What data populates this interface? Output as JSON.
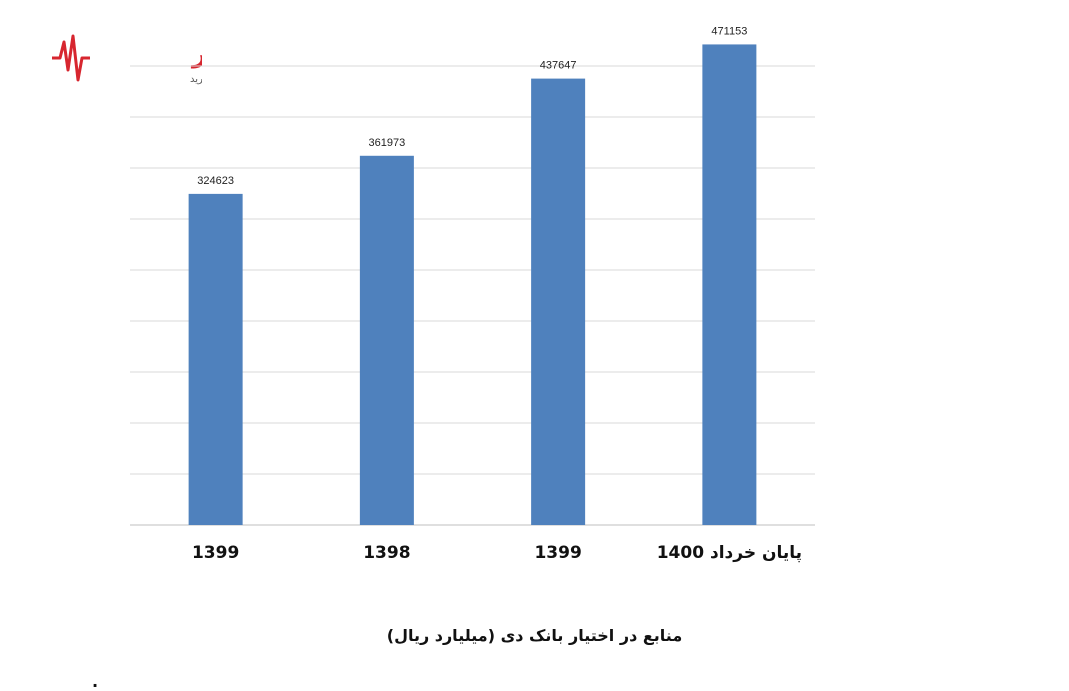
{
  "logo": {
    "name": "نبض بازار",
    "tagline": "نبض بازار را به دست بگیرید",
    "color": "#d7262f"
  },
  "chart_data": {
    "type": "bar",
    "title": "منابع در اختیار بانک دی (میلیارد ریال)",
    "categories": [
      "1399",
      "1398",
      "1399",
      "پایان خرداد 1400"
    ],
    "values": [
      324623,
      361973,
      437647,
      471153
    ],
    "bar_color": "#4f81bd",
    "grid": true,
    "ylim": [
      0,
      450000
    ]
  },
  "footnote_mark": "."
}
